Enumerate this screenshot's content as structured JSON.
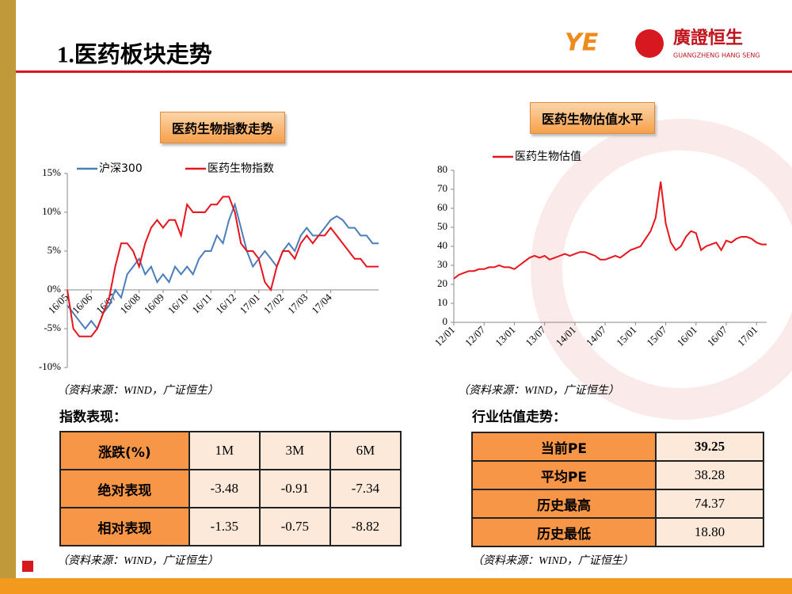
{
  "header": {
    "title": "1.医药板块走势",
    "logo_name": "廣證恒生",
    "logo_subtitle": "GUANGZHENG HANG SENG"
  },
  "chart_data": [
    {
      "type": "line",
      "title": "医药生物指数走势",
      "categories": [
        "16/05",
        null,
        null,
        null,
        "16/06",
        null,
        null,
        null,
        "16/07",
        null,
        null,
        null,
        "16/08",
        null,
        null,
        null,
        "16/09",
        null,
        null,
        null,
        "16/10",
        null,
        null,
        null,
        "16/11",
        null,
        null,
        null,
        "16/12",
        null,
        null,
        null,
        "17/01",
        null,
        null,
        null,
        "17/02",
        null,
        null,
        null,
        "17/03",
        null,
        null,
        null,
        "17/04",
        null,
        null,
        null,
        null,
        null,
        null,
        null,
        null
      ],
      "series": [
        {
          "name": "沪深300",
          "color": "#4a7ebb",
          "values": [
            -2,
            -3,
            -4,
            -5,
            -4,
            -5,
            -3,
            -2,
            0,
            -1,
            2,
            3,
            4,
            2,
            3,
            1,
            2,
            1,
            3,
            2,
            3,
            2,
            4,
            5,
            5,
            7,
            6,
            9,
            11,
            8,
            5,
            3,
            4,
            5,
            4,
            3,
            5,
            6,
            5,
            7,
            8,
            7,
            7,
            8,
            9,
            9.5,
            9,
            8,
            8,
            7,
            7,
            6,
            6
          ]
        },
        {
          "name": "医药生物指数",
          "color": "#e8141c",
          "values": [
            0,
            -5,
            -6,
            -6,
            -6,
            -5,
            -3,
            -1,
            3,
            6,
            6,
            5,
            3,
            6,
            8,
            9,
            8,
            9,
            9,
            7,
            11,
            10,
            10,
            10,
            11,
            11,
            12,
            12,
            10,
            6,
            5,
            5,
            4,
            1,
            0,
            3,
            5,
            5,
            4,
            6,
            7,
            6,
            7,
            7,
            8,
            7,
            6,
            5,
            4,
            4,
            3,
            3,
            3
          ]
        }
      ],
      "ylim": [
        -10,
        15
      ],
      "yticks": [
        {
          "value": -10,
          "label": "-10%"
        },
        {
          "value": -5,
          "label": "-5%"
        },
        {
          "value": 0,
          "label": "0%"
        },
        {
          "value": 5,
          "label": "5%"
        },
        {
          "value": 10,
          "label": "10%"
        },
        {
          "value": 15,
          "label": "15%"
        }
      ],
      "source": "（资料来源：WIND，广证恒生）"
    },
    {
      "type": "line",
      "title": "医药生物估值水平",
      "categories": [
        "12/01",
        null,
        null,
        null,
        null,
        null,
        "12/07",
        null,
        null,
        null,
        null,
        null,
        "13/01",
        null,
        null,
        null,
        null,
        null,
        "13/07",
        null,
        null,
        null,
        null,
        null,
        "14/01",
        null,
        null,
        null,
        null,
        null,
        "14/07",
        null,
        null,
        null,
        null,
        null,
        "15/01",
        null,
        null,
        null,
        null,
        null,
        "15/07",
        null,
        null,
        null,
        null,
        null,
        "16/01",
        null,
        null,
        null,
        null,
        null,
        "16/07",
        null,
        null,
        null,
        null,
        null,
        "17/01",
        null,
        null
      ],
      "series": [
        {
          "name": "医药生物估值",
          "color": "#e8141c",
          "values": [
            23,
            25,
            26,
            27,
            27,
            28,
            28,
            29,
            29,
            30,
            29,
            29,
            28,
            30,
            32,
            34,
            35,
            34,
            35,
            33,
            34,
            35,
            36,
            35,
            36,
            37,
            37,
            36,
            35,
            33,
            33,
            34,
            35,
            34,
            36,
            38,
            39,
            40,
            44,
            48,
            55,
            74,
            52,
            42,
            38,
            40,
            45,
            48,
            47,
            38,
            40,
            41,
            42,
            38,
            43,
            42,
            44,
            45,
            45,
            44,
            42,
            41,
            41
          ]
        }
      ],
      "ylim": [
        0,
        80
      ],
      "yticks": [
        0,
        10,
        20,
        30,
        40,
        50,
        60,
        70,
        80
      ],
      "source": "（资料来源：WIND，广证恒生）"
    }
  ],
  "index_table": {
    "heading": "指数表现：",
    "header": [
      "涨跌(%)",
      "1M",
      "3M",
      "6M"
    ],
    "rows": [
      [
        "绝对表现",
        "-3.48",
        "-0.91",
        "-7.34"
      ],
      [
        "相对表现",
        "-1.35",
        "-0.75",
        "-8.82"
      ]
    ],
    "source": "（资料来源：WIND，广证恒生）"
  },
  "valuation_table": {
    "heading": "行业估值走势：",
    "rows": [
      [
        "当前PE",
        "39.25"
      ],
      [
        "平均PE",
        "38.28"
      ],
      [
        "历史最高",
        "74.37"
      ],
      [
        "历史最低",
        "18.80"
      ]
    ],
    "source": "（资料来源：WIND，广证恒生）"
  }
}
